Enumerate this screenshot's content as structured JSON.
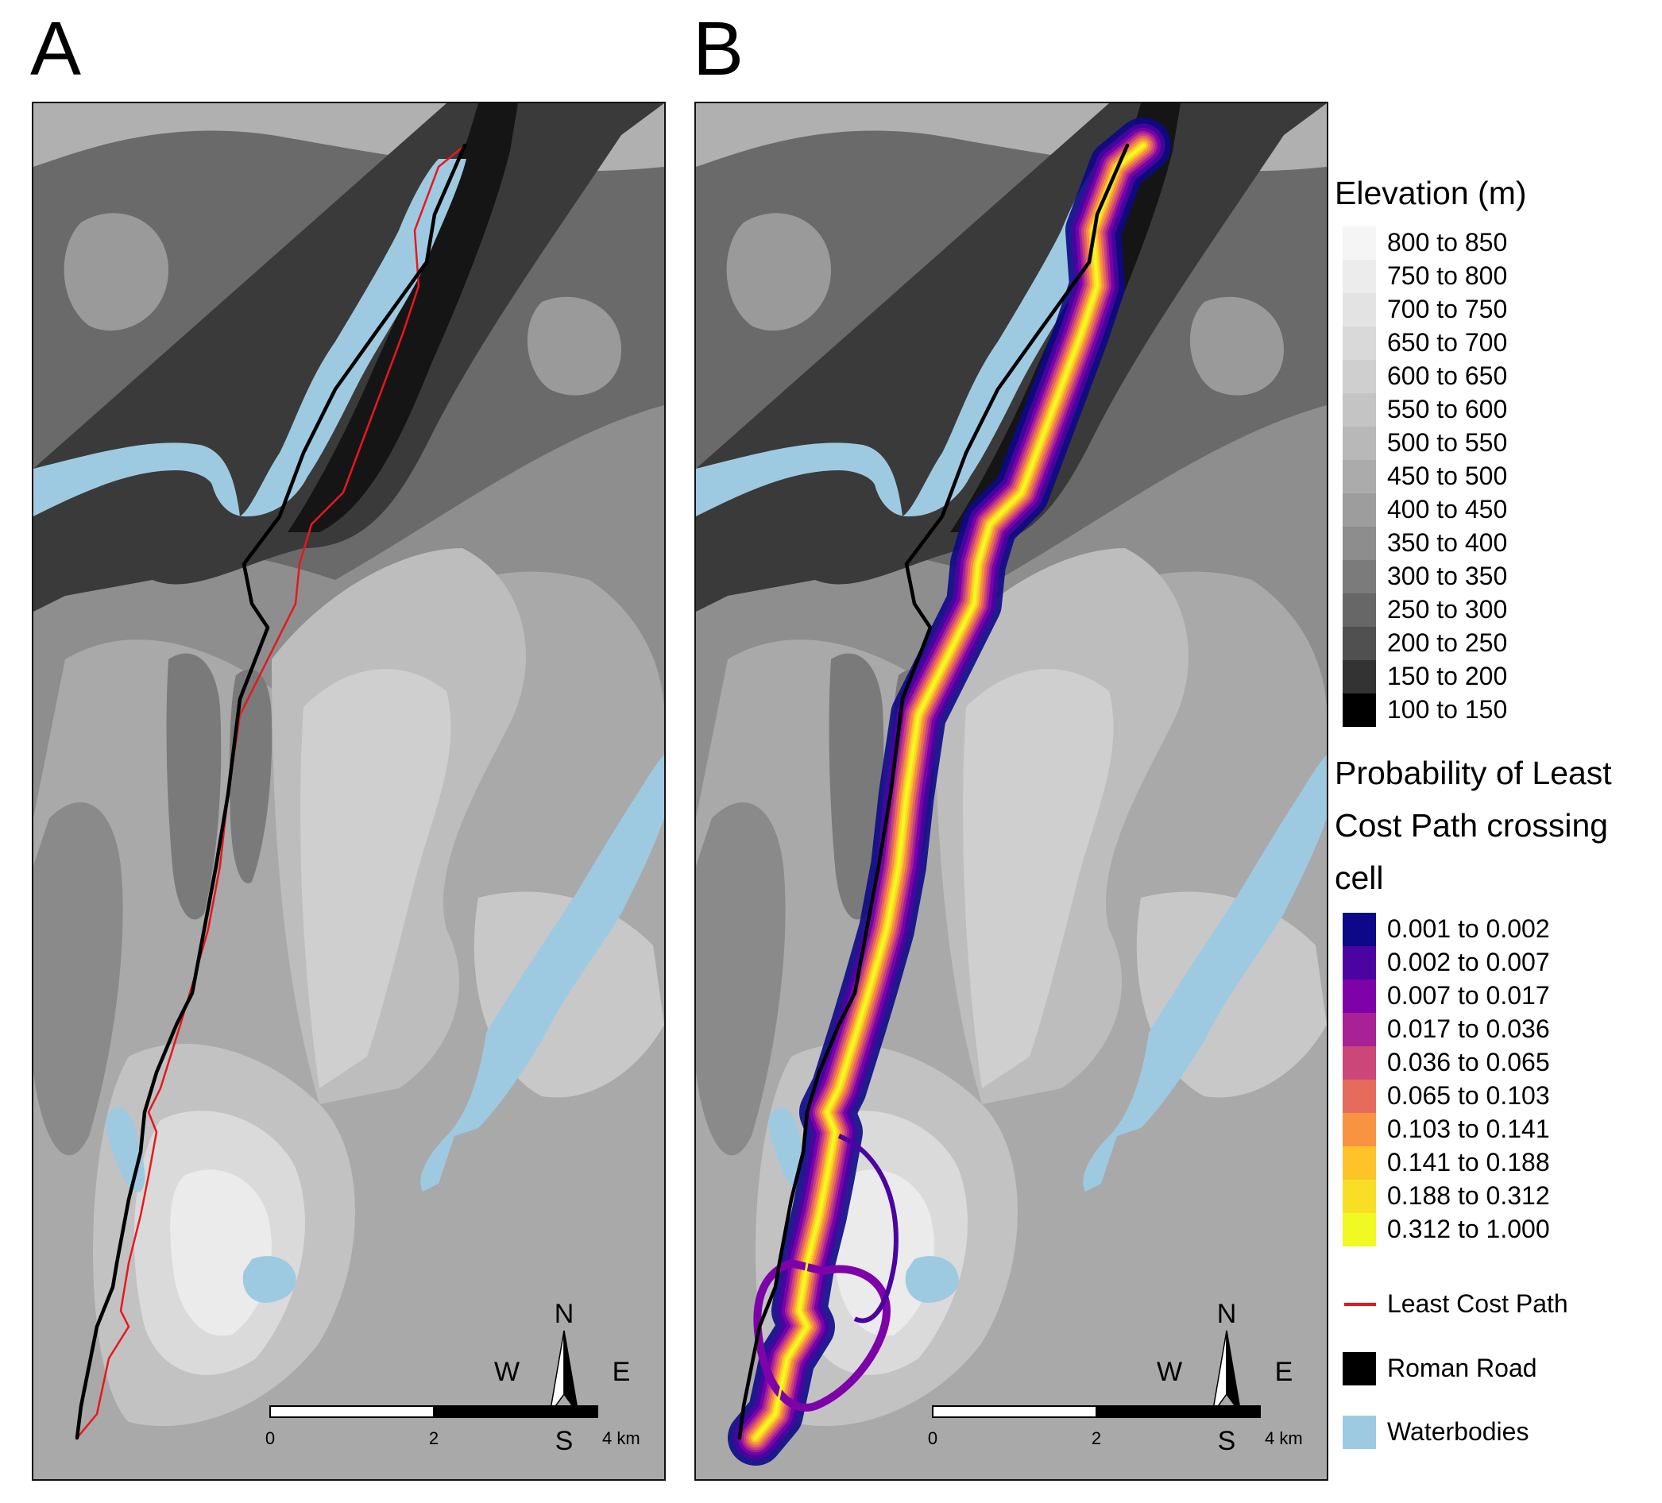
{
  "panels": [
    {
      "letter": "A",
      "show_lcp_line": true,
      "show_probability": false
    },
    {
      "letter": "B",
      "show_lcp_line": false,
      "show_probability": true
    }
  ],
  "compass": {
    "n": "N",
    "s": "S",
    "w": "W",
    "e": "E"
  },
  "scalebar": {
    "labels": [
      "0",
      "2",
      "4 km"
    ]
  },
  "legend": {
    "elevation": {
      "title": "Elevation (m)",
      "classes": [
        {
          "label": "800 to 850",
          "color": "#f5f5f5"
        },
        {
          "label": "750 to 800",
          "color": "#ececec"
        },
        {
          "label": "700 to 750",
          "color": "#e3e3e3"
        },
        {
          "label": "650 to 700",
          "color": "#d9d9d9"
        },
        {
          "label": "600 to 650",
          "color": "#cfcfcf"
        },
        {
          "label": "550 to 600",
          "color": "#c4c4c4"
        },
        {
          "label": "500 to 550",
          "color": "#b8b8b8"
        },
        {
          "label": "450 to 500",
          "color": "#ababab"
        },
        {
          "label": "400 to 450",
          "color": "#9d9d9d"
        },
        {
          "label": "350 to 400",
          "color": "#8d8d8d"
        },
        {
          "label": "300 to 350",
          "color": "#7b7b7b"
        },
        {
          "label": "250 to 300",
          "color": "#676767"
        },
        {
          "label": "200 to 250",
          "color": "#505050"
        },
        {
          "label": "150 to 200",
          "color": "#333333"
        },
        {
          "label": "100 to 150",
          "color": "#000000"
        }
      ]
    },
    "probability": {
      "title_lines": [
        "Probability of Least",
        "Cost Path crossing",
        "cell"
      ],
      "classes": [
        {
          "label": "0.001 to 0.002",
          "color": "#0d0887"
        },
        {
          "label": "0.002 to 0.007",
          "color": "#4b03a1"
        },
        {
          "label": "0.007 to 0.017",
          "color": "#7d03a8"
        },
        {
          "label": "0.017 to 0.036",
          "color": "#a82296"
        },
        {
          "label": "0.036 to 0.065",
          "color": "#cb4679"
        },
        {
          "label": "0.065 to 0.103",
          "color": "#e56b5d"
        },
        {
          "label": "0.103 to 0.141",
          "color": "#f89441"
        },
        {
          "label": "0.141 to 0.188",
          "color": "#fdc328"
        },
        {
          "label": "0.188 to 0.312",
          "color": "#f8df25"
        },
        {
          "label": "0.312 to 1.000",
          "color": "#f0f921"
        }
      ]
    },
    "lines": {
      "least_cost_path": {
        "label": "Least Cost Path",
        "color": "#e8171c"
      },
      "roman_road": {
        "label": "Roman Road",
        "color": "#000000"
      },
      "waterbodies": {
        "label": "Waterbodies",
        "color": "#9ecae1"
      }
    }
  }
}
